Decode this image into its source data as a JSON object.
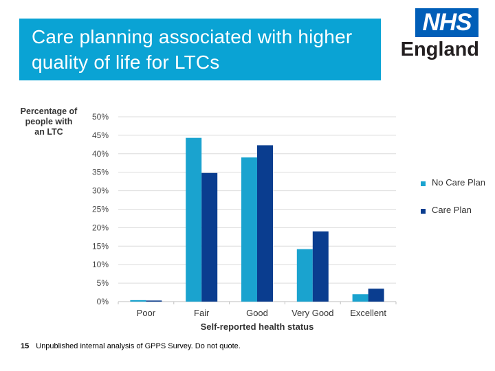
{
  "header": {
    "title": "Care planning associated with higher quality of life for LTCs"
  },
  "logo": {
    "nhs_text": "NHS",
    "england_text": "England"
  },
  "chart_data": {
    "type": "bar",
    "title": "",
    "ylabel": "Percentage of people with an LTC",
    "xlabel": "Self-reported health status",
    "categories": [
      "Poor",
      "Fair",
      "Good",
      "Very Good",
      "Excellent"
    ],
    "series": [
      {
        "name": "No Care Plan",
        "values": [
          0.4,
          44.3,
          39.0,
          14.2,
          2.0
        ],
        "color": "#1aa3cf"
      },
      {
        "name": "Care Plan",
        "values": [
          0.3,
          34.8,
          42.3,
          19.0,
          3.5
        ],
        "color": "#0a3d8f"
      }
    ],
    "ylim": [
      0,
      50
    ],
    "yticks": [
      0,
      5,
      10,
      15,
      20,
      25,
      30,
      35,
      40,
      45,
      50
    ],
    "ytick_labels": [
      "0%",
      "5%",
      "10%",
      "15%",
      "20%",
      "25%",
      "30%",
      "35%",
      "40%",
      "45%",
      "50%"
    ],
    "grid": true,
    "legend_position": "right"
  },
  "footnote": {
    "number": "15",
    "text": "Unpublished internal analysis of GPPS Survey.  Do not quote."
  }
}
